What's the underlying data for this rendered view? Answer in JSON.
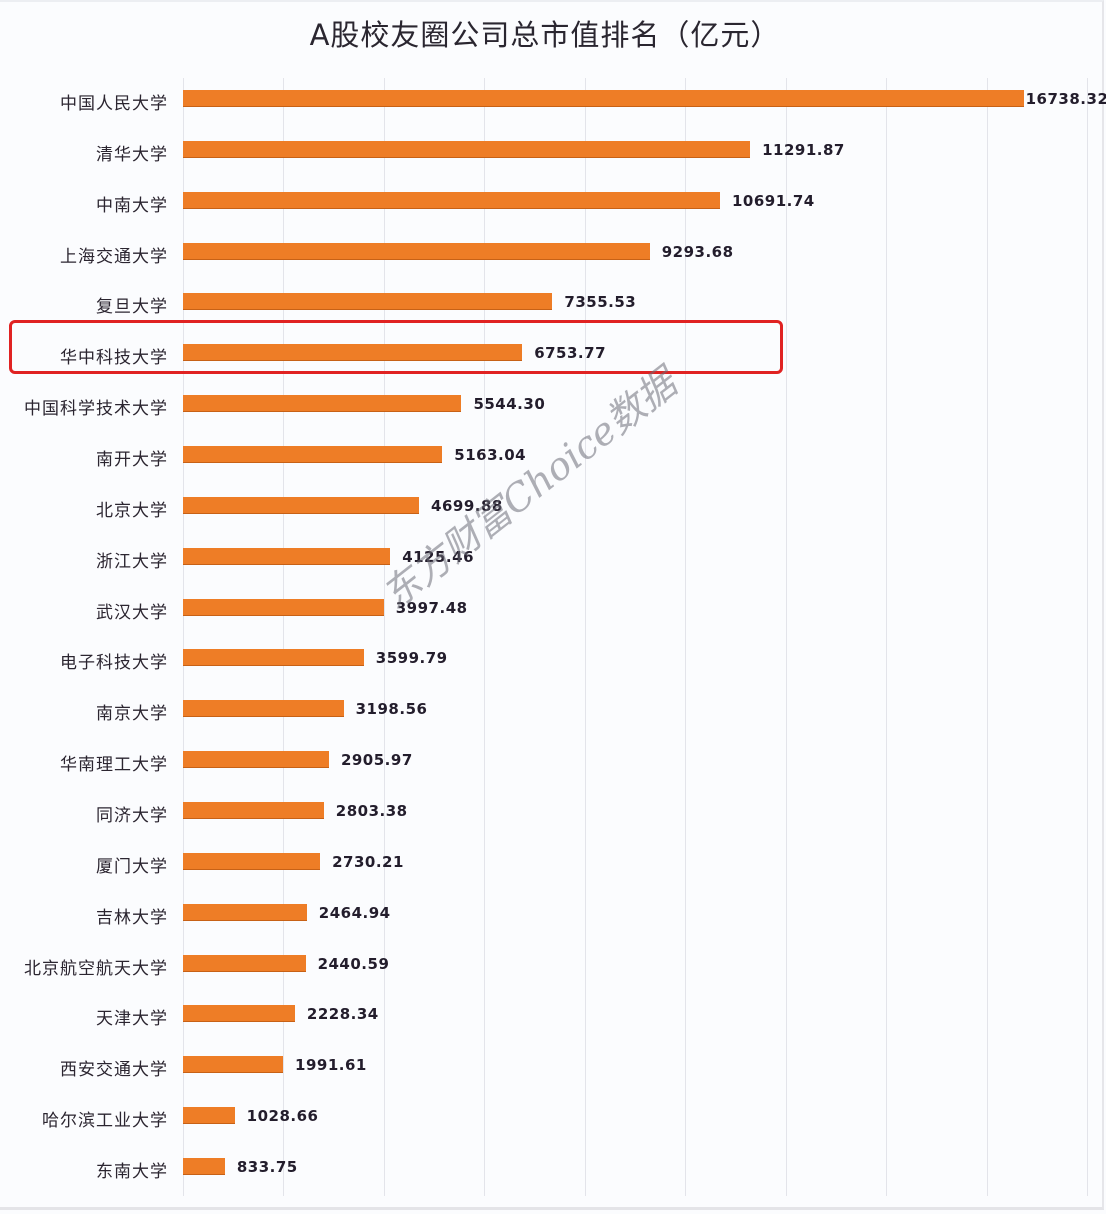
{
  "chart_data": {
    "type": "bar",
    "orientation": "horizontal",
    "title": "A股校友圈公司总市值排名（亿元）",
    "xlabel": "",
    "ylabel": "",
    "xlim": [
      0,
      18000
    ],
    "grid": true,
    "grid_step": 2000,
    "legend": null,
    "bar_color": "#ee7d26",
    "highlight": {
      "category": "华中科技大学",
      "color": "#e02222"
    },
    "watermark": "东方财富Choice数据",
    "categories": [
      "中国人民大学",
      "清华大学",
      "中南大学",
      "上海交通大学",
      "复旦大学",
      "华中科技大学",
      "中国科学技术大学",
      "南开大学",
      "北京大学",
      "浙江大学",
      "武汉大学",
      "电子科技大学",
      "南京大学",
      "华南理工大学",
      "同济大学",
      "厦门大学",
      "吉林大学",
      "北京航空航天大学",
      "天津大学",
      "西安交通大学",
      "哈尔滨工业大学",
      "东南大学"
    ],
    "values": [
      16738.32,
      11291.87,
      10691.74,
      9293.68,
      7355.53,
      6753.77,
      5544.3,
      5163.04,
      4699.88,
      4125.46,
      3997.48,
      3599.79,
      3198.56,
      2905.97,
      2803.38,
      2730.21,
      2464.94,
      2440.59,
      2228.34,
      1991.61,
      1028.66,
      833.75
    ],
    "value_labels": [
      "16738.32",
      "11291.87",
      "10691.74",
      "9293.68",
      "7355.53",
      "6753.77",
      "5544.30",
      "5163.04",
      "4699.88",
      "4125.46",
      "3997.48",
      "3599.79",
      "3198.56",
      "2905.97",
      "2803.38",
      "2730.21",
      "2464.94",
      "2440.59",
      "2228.34",
      "1991.61",
      "1028.66",
      "833.75"
    ]
  }
}
